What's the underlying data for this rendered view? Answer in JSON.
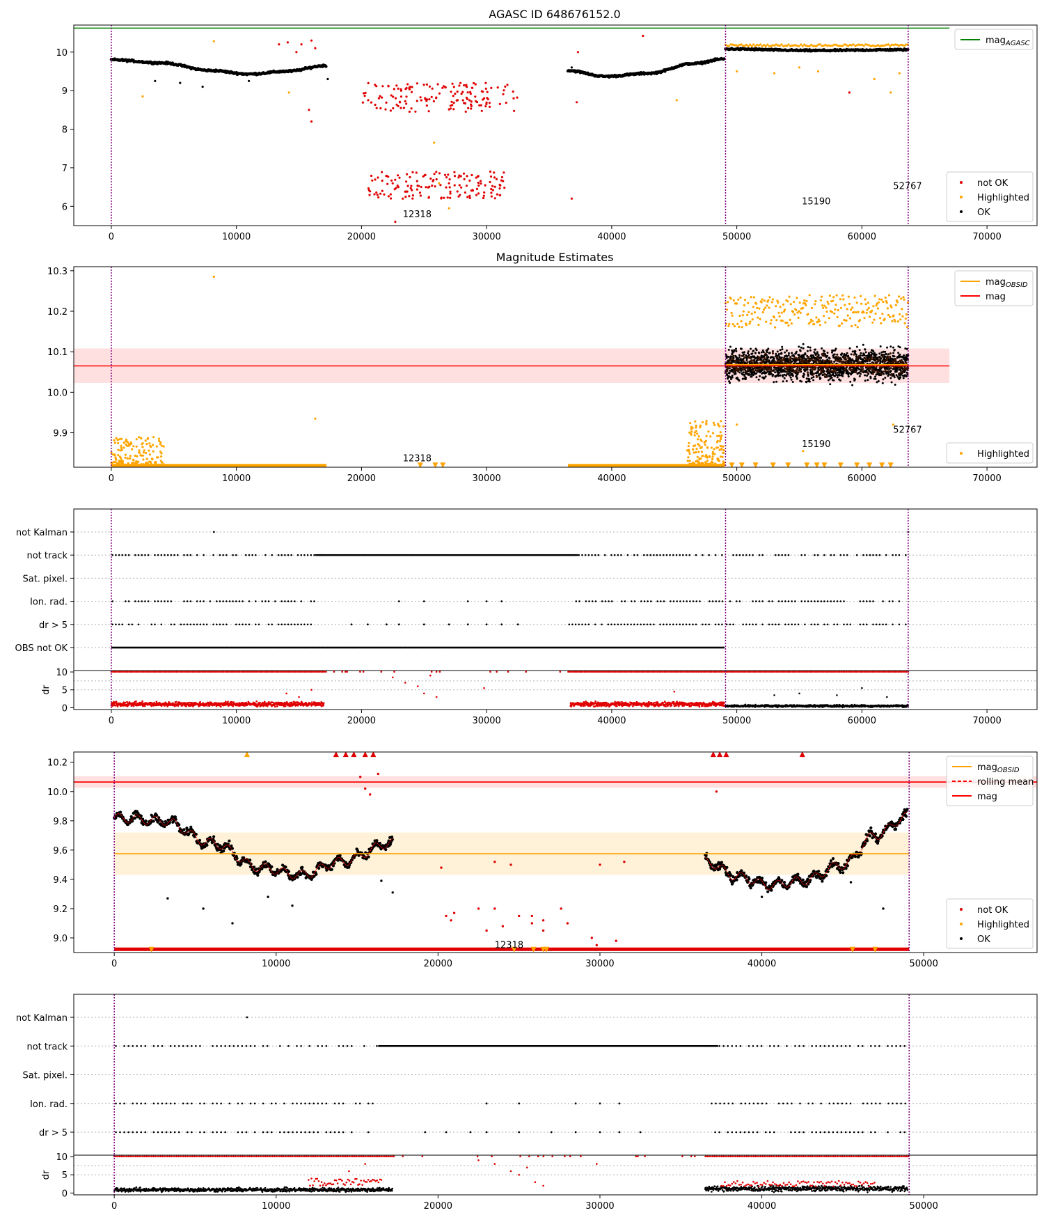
{
  "figure": {
    "title_top": "AGASC ID 648676152.0",
    "title_p2": "Magnitude Estimates"
  },
  "colors": {
    "ok": "#000000",
    "not_ok": "#e00000",
    "highlighted": "#ffa500",
    "agasc_line": "#008000",
    "mag_line": "#ff0000",
    "mag_obsid_line": "#ffa500",
    "vline": "#800080",
    "grid": "#b0b0b0"
  },
  "icons": {
    "legend_point": "dot-marker",
    "legend_line": "line-marker"
  },
  "chart_data": [
    {
      "id": "p1",
      "type": "scatter",
      "title": "AGASC ID 648676152.0",
      "xlim": [
        -3000,
        74000
      ],
      "ylim": [
        5.5,
        10.7
      ],
      "xticks": [
        0,
        10000,
        20000,
        30000,
        40000,
        50000,
        60000,
        70000
      ],
      "yticks": [
        6,
        7,
        8,
        9,
        10
      ],
      "legends": [
        {
          "position": "upper-right",
          "entries": [
            {
              "label": "mag",
              "sub": "AGASC",
              "kind": "line",
              "color": "#008000"
            }
          ]
        },
        {
          "position": "lower-right",
          "entries": [
            {
              "label": "not OK",
              "kind": "point",
              "color": "#e00000"
            },
            {
              "label": "Highlighted",
              "kind": "point",
              "color": "#ffa500"
            },
            {
              "label": "OK",
              "kind": "point",
              "color": "#000000"
            }
          ]
        }
      ],
      "hlines": [
        {
          "y": 10.62,
          "x0": -3000,
          "x1": 67000,
          "color": "#008000"
        }
      ],
      "vlines": [
        0,
        49100,
        63700
      ],
      "annotations": [
        {
          "x": 23300,
          "y": 5.72,
          "text": "12318"
        },
        {
          "x": 55200,
          "y": 6.05,
          "text": "15190"
        },
        {
          "x": 62500,
          "y": 6.45,
          "text": "52767"
        }
      ],
      "segments": [
        {
          "x0": 0,
          "x1": 17200,
          "ok_curve": [
            [
              0,
              9.8
            ],
            [
              4000,
              9.72
            ],
            [
              8000,
              9.52
            ],
            [
              11000,
              9.43
            ],
            [
              14000,
              9.5
            ],
            [
              17200,
              9.65
            ]
          ],
          "noise": 0.035
        },
        {
          "x0": 36500,
          "x1": 49000,
          "ok_curve": [
            [
              36500,
              9.52
            ],
            [
              39500,
              9.37
            ],
            [
              43000,
              9.45
            ],
            [
              46500,
              9.7
            ],
            [
              49000,
              9.82
            ]
          ],
          "noise": 0.035
        },
        {
          "x0": 49100,
          "x1": 63700,
          "ok_curve": [
            [
              49100,
              10.08
            ],
            [
              56000,
              10.04
            ],
            [
              63700,
              10.06
            ]
          ],
          "noise": 0.03
        }
      ],
      "not_ok_clusters": [
        {
          "x0": 20000,
          "x1": 32500,
          "y0": 8.45,
          "y1": 9.2
        },
        {
          "x0": 20500,
          "x1": 31500,
          "y0": 6.2,
          "y1": 6.9
        }
      ],
      "extra_points": {
        "not_ok": [
          [
            13400,
            10.2
          ],
          [
            14100,
            10.25
          ],
          [
            15200,
            10.2
          ],
          [
            16000,
            10.3
          ],
          [
            15800,
            8.5
          ],
          [
            16000,
            8.2
          ],
          [
            16300,
            10.1
          ],
          [
            14800,
            10.0
          ],
          [
            23300,
            6.2
          ],
          [
            22700,
            5.6
          ],
          [
            36800,
            6.2
          ],
          [
            37200,
            8.7
          ],
          [
            37300,
            10.0
          ],
          [
            42500,
            10.42
          ],
          [
            59000,
            8.95
          ]
        ],
        "highlighted": [
          [
            8200,
            10.28
          ],
          [
            2500,
            8.85
          ],
          [
            14200,
            8.95
          ],
          [
            25800,
            7.65
          ],
          [
            26200,
            6.6
          ],
          [
            27000,
            5.95
          ],
          [
            45200,
            8.75
          ],
          [
            50000,
            9.5
          ],
          [
            53000,
            9.45
          ],
          [
            55000,
            9.6
          ],
          [
            56500,
            9.5
          ],
          [
            61000,
            9.3
          ],
          [
            62300,
            8.95
          ],
          [
            63000,
            9.45
          ]
        ],
        "ok": [
          [
            3500,
            9.25
          ],
          [
            5500,
            9.2
          ],
          [
            7300,
            9.1
          ],
          [
            11000,
            9.25
          ],
          [
            17300,
            9.3
          ],
          [
            36800,
            9.6
          ]
        ]
      }
    },
    {
      "id": "p2",
      "type": "scatter",
      "title": "Magnitude Estimates",
      "xlim": [
        -3000,
        74000
      ],
      "ylim": [
        9.815,
        10.31
      ],
      "xticks": [
        0,
        10000,
        20000,
        30000,
        40000,
        50000,
        60000,
        70000
      ],
      "yticks": [
        9.9,
        10.0,
        10.1,
        10.2,
        10.3
      ],
      "legends": [
        {
          "position": "upper-right",
          "entries": [
            {
              "label": "mag",
              "sub": "OBSID",
              "kind": "line",
              "color": "#ffa500"
            },
            {
              "label": "mag",
              "kind": "line",
              "color": "#ff0000"
            }
          ]
        },
        {
          "position": "lower-right",
          "entries": [
            {
              "label": "Highlighted",
              "kind": "point",
              "color": "#ffa500"
            }
          ]
        }
      ],
      "bands": [
        {
          "y0": 10.023,
          "y1": 10.108,
          "x0": -3000,
          "x1": 67000,
          "color": "#ff0000",
          "opacity": 0.12
        }
      ],
      "hlines": [
        {
          "y": 10.065,
          "x0": -3000,
          "x1": 67000,
          "color": "#ff0000"
        },
        {
          "y": 10.068,
          "x0": 49100,
          "x1": 63700,
          "color": "#ffa500"
        }
      ],
      "vlines": [
        0,
        49100,
        63700
      ],
      "annotations": [
        {
          "x": 23300,
          "y": 9.83,
          "text": "12318"
        },
        {
          "x": 55200,
          "y": 9.865,
          "text": "15190"
        },
        {
          "x": 62500,
          "y": 9.9,
          "text": "52767"
        }
      ],
      "floor_runs": [
        [
          0,
          17200
        ],
        [
          36500,
          49000
        ]
      ],
      "floor_y": 9.818,
      "highlight_clusters": [
        {
          "x0": 0,
          "x1": 4200,
          "y0": 9.82,
          "y1": 9.89
        },
        {
          "x0": 46000,
          "x1": 49000,
          "y0": 9.82,
          "y1": 9.93
        }
      ],
      "dense_band": {
        "x0": 49100,
        "x1": 63700,
        "center": 10.068,
        "spread": 0.1
      },
      "extra_points": {
        "highlighted": [
          [
            8200,
            10.285
          ],
          [
            16300,
            9.935
          ],
          [
            55300,
            9.855
          ],
          [
            50000,
            9.92
          ],
          [
            62500,
            9.92
          ]
        ]
      }
    },
    {
      "id": "p3",
      "type": "scatter",
      "categories": [
        "not Kalman",
        "not track",
        "Sat. pixel.",
        "Ion. rad.",
        "dr > 5",
        "OBS not OK"
      ],
      "xlim": [
        -3000,
        74000
      ],
      "xticks": [
        0,
        10000,
        20000,
        30000,
        40000,
        50000,
        60000,
        70000
      ],
      "vlines": [
        0,
        49100,
        63700
      ],
      "flag_runs": {
        "not Kalman": [],
        "not track": [
          [
            0,
            17000
          ],
          [
            16500,
            37300
          ],
          [
            36500,
            49000
          ],
          [
            49100,
            63700
          ]
        ],
        "Sat. pixel.": [],
        "Ion. rad.": [
          [
            0,
            16300
          ],
          [
            36800,
            49000
          ],
          [
            49100,
            63700
          ]
        ],
        "dr > 5": [
          [
            0,
            16300
          ],
          [
            36500,
            49000
          ],
          [
            49100,
            63700
          ]
        ],
        "OBS not OK": [
          [
            0,
            49000
          ]
        ]
      },
      "flag_dense": {
        "not track": [
          [
            16300,
            37300
          ]
        ],
        "OBS not OK": [
          [
            0,
            49000
          ]
        ]
      },
      "flag_points": {
        "not Kalman": [
          8200,
          63700
        ],
        "Ion. rad.": [
          23000,
          25000,
          28500,
          30000,
          31200
        ],
        "dr > 5": [
          19200,
          20500,
          22000,
          23000,
          25000,
          27000,
          28500,
          30000,
          31200,
          32500
        ]
      },
      "dr_ylabel": "dr",
      "dr_ylim": [
        -0.5,
        10.4
      ],
      "dr_yticks": [
        0,
        5,
        10
      ]
    },
    {
      "id": "p4",
      "type": "scatter",
      "xlim": [
        -2500,
        57000
      ],
      "ylim": [
        8.9,
        10.27
      ],
      "xticks": [
        0,
        10000,
        20000,
        30000,
        40000,
        50000
      ],
      "yticks": [
        9.0,
        9.2,
        9.4,
        9.6,
        9.8,
        10.0,
        10.2
      ],
      "legends": [
        {
          "position": "upper-right",
          "entries": [
            {
              "label": "mag",
              "sub": "OBSID",
              "kind": "line",
              "color": "#ffa500"
            },
            {
              "label": "rolling mean",
              "kind": "dashed",
              "color": "#ff0000"
            },
            {
              "label": "mag",
              "kind": "line",
              "color": "#ff0000"
            }
          ]
        },
        {
          "position": "lower-right",
          "entries": [
            {
              "label": "not OK",
              "kind": "point",
              "color": "#e00000"
            },
            {
              "label": "Highlighted",
              "kind": "point",
              "color": "#ffa500"
            },
            {
              "label": "OK",
              "kind": "point",
              "color": "#000000"
            }
          ]
        }
      ],
      "bands": [
        {
          "y0": 10.025,
          "y1": 10.105,
          "x0": -2500,
          "x1": 57000,
          "color": "#ff0000",
          "opacity": 0.12
        },
        {
          "y0": 9.43,
          "y1": 9.72,
          "x0": 0,
          "x1": 49100,
          "color": "#ffa500",
          "opacity": 0.15
        }
      ],
      "hlines": [
        {
          "y": 10.065,
          "x0": -2500,
          "x1": 57000,
          "color": "#ff0000"
        },
        {
          "y": 9.575,
          "x0": 0,
          "x1": 49100,
          "color": "#ffa500"
        }
      ],
      "vlines": [
        0,
        49100
      ],
      "annotations": [
        {
          "x": 23500,
          "y": 8.93,
          "text": "12318"
        }
      ],
      "segments": [
        {
          "x0": 0,
          "x1": 17200,
          "ok_curve": [
            [
              0,
              9.82
            ],
            [
              3000,
              9.8
            ],
            [
              6000,
              9.65
            ],
            [
              9000,
              9.48
            ],
            [
              11500,
              9.43
            ],
            [
              14000,
              9.52
            ],
            [
              17200,
              9.65
            ]
          ],
          "noise": 0.04,
          "wobble": 0.03
        },
        {
          "x0": 36500,
          "x1": 49000,
          "ok_curve": [
            [
              36500,
              9.52
            ],
            [
              38500,
              9.42
            ],
            [
              40500,
              9.36
            ],
            [
              42500,
              9.39
            ],
            [
              45000,
              9.5
            ],
            [
              47000,
              9.7
            ],
            [
              49000,
              9.83
            ]
          ],
          "noise": 0.04,
          "wobble": 0.03
        }
      ],
      "floor_y": 8.92,
      "floor_run": [
        0,
        49100
      ],
      "extra_points": {
        "not_ok": [
          [
            13700,
            10.25
          ],
          [
            14300,
            10.25
          ],
          [
            14800,
            10.25
          ],
          [
            15500,
            10.25
          ],
          [
            16000,
            10.25
          ],
          [
            37000,
            10.25
          ],
          [
            37400,
            10.25
          ],
          [
            37800,
            10.25
          ],
          [
            42500,
            10.25
          ],
          [
            15200,
            10.1
          ],
          [
            16300,
            10.12
          ],
          [
            15500,
            10.02
          ],
          [
            15800,
            9.98
          ],
          [
            37200,
            10.0
          ],
          [
            20500,
            9.15
          ],
          [
            21000,
            9.17
          ],
          [
            22500,
            9.2
          ],
          [
            23500,
            9.2
          ],
          [
            20800,
            9.12
          ],
          [
            23000,
            9.05
          ],
          [
            25000,
            9.15
          ],
          [
            26500,
            9.12
          ],
          [
            27600,
            9.2
          ],
          [
            28000,
            9.1
          ],
          [
            29500,
            9.0
          ],
          [
            31000,
            8.98
          ],
          [
            20200,
            9.48
          ],
          [
            23500,
            9.52
          ],
          [
            24500,
            9.5
          ],
          [
            30000,
            9.5
          ],
          [
            31500,
            9.52
          ],
          [
            25800,
            9.15
          ],
          [
            25800,
            9.1
          ],
          [
            24000,
            9.08
          ],
          [
            26500,
            9.05
          ],
          [
            29800,
            8.95
          ]
        ],
        "highlighted": [
          [
            8200,
            10.25
          ],
          [
            2300,
            8.93
          ]
        ],
        "ok": [
          [
            3300,
            9.27
          ],
          [
            5500,
            9.2
          ],
          [
            7300,
            9.1
          ],
          [
            9500,
            9.28
          ],
          [
            11000,
            9.22
          ],
          [
            16500,
            9.39
          ],
          [
            17200,
            9.31
          ],
          [
            45500,
            9.38
          ],
          [
            47500,
            9.2
          ],
          [
            38000,
            9.45
          ],
          [
            40000,
            9.28
          ]
        ]
      }
    },
    {
      "id": "p5",
      "type": "scatter",
      "categories": [
        "not Kalman",
        "not track",
        "Sat. pixel.",
        "Ion. rad.",
        "dr > 5"
      ],
      "xlim": [
        -2500,
        57000
      ],
      "xticks": [
        0,
        10000,
        20000,
        30000,
        40000,
        50000
      ],
      "vlines": [
        0,
        49100
      ],
      "flag_runs": {
        "not Kalman": [],
        "not track": [
          [
            0,
            17000
          ],
          [
            36500,
            49000
          ]
        ],
        "Sat. pixel.": [],
        "Ion. rad.": [
          [
            0,
            16300
          ],
          [
            36800,
            49000
          ]
        ],
        "dr > 5": [
          [
            0,
            16300
          ],
          [
            36500,
            49000
          ]
        ]
      },
      "flag_dense": {
        "not track": [
          [
            16300,
            37300
          ]
        ]
      },
      "flag_points": {
        "not Kalman": [
          8200
        ],
        "Ion. rad.": [
          23000,
          25000,
          28500,
          30000,
          31200
        ],
        "dr > 5": [
          19200,
          20500,
          22000,
          23000,
          25000,
          27000,
          28500,
          30000,
          31200,
          32500
        ]
      },
      "dr_ylabel": "dr",
      "dr_ylim": [
        -0.5,
        10.4
      ],
      "dr_yticks": [
        0,
        5,
        10
      ]
    }
  ]
}
